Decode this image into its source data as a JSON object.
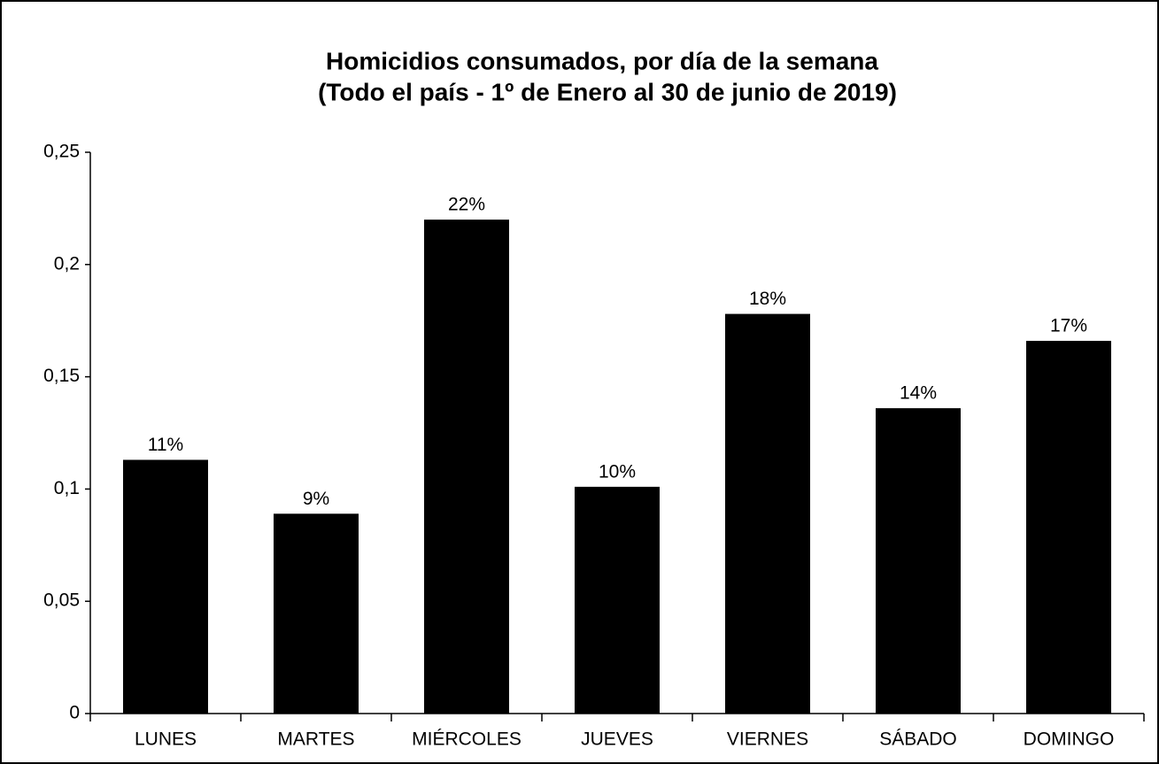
{
  "chart_data": {
    "type": "bar",
    "title": [
      "Homicidios consumados, por día de la semana",
      "(Todo el país - 1º de Enero al 30 de junio de 2019)"
    ],
    "categories": [
      "LUNES",
      "MARTES",
      "MIÉRCOLES",
      "JUEVES",
      "VIERNES",
      "SÁBADO",
      "DOMINGO"
    ],
    "values": [
      0.113,
      0.089,
      0.22,
      0.101,
      0.178,
      0.136,
      0.166
    ],
    "value_labels": [
      "11%",
      "9%",
      "22%",
      "10%",
      "18%",
      "14%",
      "17%"
    ],
    "color": "#000000",
    "ylim": [
      0,
      0.25
    ],
    "yticks": [
      0,
      {
        "value": 0.05,
        "label": "0,05"
      },
      {
        "value": 0.1,
        "label": "0,1"
      },
      {
        "value": 0.15,
        "label": "0,15"
      },
      {
        "value": 0.2,
        "label": "0,2"
      },
      {
        "value": 0.25,
        "label": "0,25"
      }
    ],
    "grid": false
  }
}
